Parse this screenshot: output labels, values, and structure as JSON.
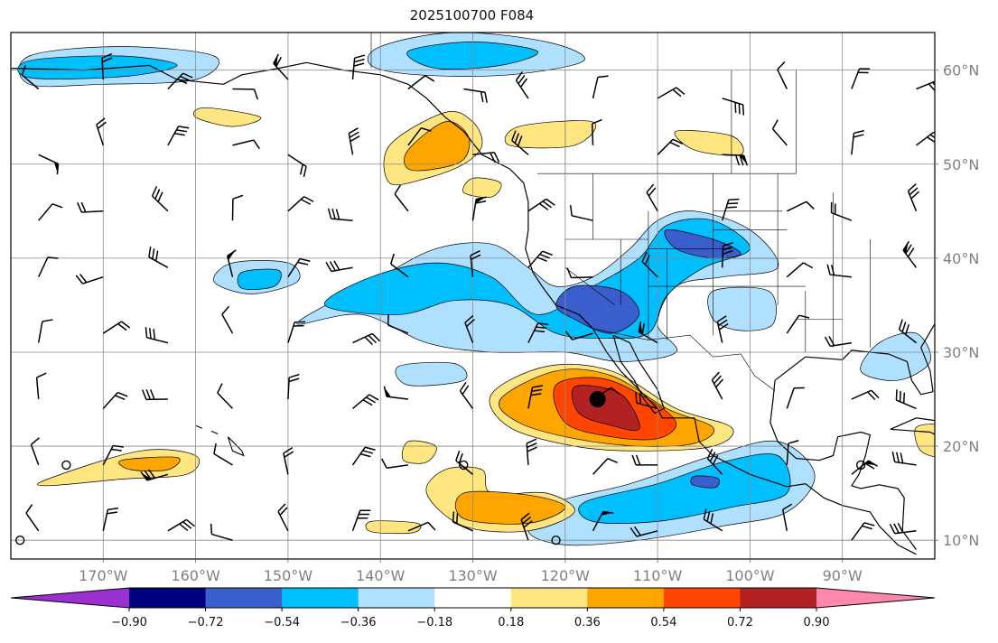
{
  "title": "2025100700 F084",
  "x_axis": {
    "ticks": [
      {
        "lon": -170,
        "label": "170°W"
      },
      {
        "lon": -160,
        "label": "160°W"
      },
      {
        "lon": -150,
        "label": "150°W"
      },
      {
        "lon": -140,
        "label": "140°W"
      },
      {
        "lon": -130,
        "label": "130°W"
      },
      {
        "lon": -120,
        "label": "120°W"
      },
      {
        "lon": -110,
        "label": "110°W"
      },
      {
        "lon": -100,
        "label": "100°W"
      },
      {
        "lon": -90,
        "label": "90°W"
      }
    ],
    "range": [
      -180,
      -80
    ]
  },
  "y_axis": {
    "ticks": [
      {
        "lat": 60,
        "label": "60°N"
      },
      {
        "lat": 50,
        "label": "50°N"
      },
      {
        "lat": 40,
        "label": "40°N"
      },
      {
        "lat": 30,
        "label": "30°N"
      },
      {
        "lat": 20,
        "label": "20°N"
      },
      {
        "lat": 10,
        "label": "10°N"
      }
    ],
    "range": [
      8,
      64
    ]
  },
  "grid": true,
  "colorbar": {
    "labels": [
      "−0.90",
      "−0.72",
      "−0.54",
      "−0.36",
      "−0.18",
      "0.18",
      "0.36",
      "0.54",
      "0.72",
      "0.90"
    ],
    "colors": [
      "#9b30d0",
      "#000080",
      "#3a5fcd",
      "#00bfff",
      "#b0e0ff",
      "#ffffff",
      "#ffe680",
      "#ffa500",
      "#ff4500",
      "#b22222",
      "#ff88aa"
    ],
    "extend": "both"
  },
  "contour_regions": [
    {
      "level": "-0.36",
      "color": "#b0e0ff",
      "pts": [
        [
          -140,
          38
        ],
        [
          -134,
          41
        ],
        [
          -128,
          41.5
        ],
        [
          -124,
          39
        ],
        [
          -121,
          37
        ],
        [
          -117,
          38
        ],
        [
          -113,
          41
        ],
        [
          -110,
          44
        ],
        [
          -106,
          45
        ],
        [
          -100,
          43
        ],
        [
          -97,
          39
        ],
        [
          -103,
          38
        ],
        [
          -108,
          37
        ],
        [
          -110,
          33
        ],
        [
          -108,
          30
        ],
        [
          -114,
          29
        ],
        [
          -120,
          30
        ],
        [
          -128,
          30
        ],
        [
          -135,
          31
        ],
        [
          -142,
          34
        ],
        [
          -149,
          33
        ],
        [
          -144,
          36
        ]
      ]
    },
    {
      "level": "-0.54",
      "color": "#00bfff",
      "pts": [
        [
          -141,
          38
        ],
        [
          -134,
          39.5
        ],
        [
          -128,
          38
        ],
        [
          -123,
          34
        ],
        [
          -117,
          37
        ],
        [
          -112,
          40
        ],
        [
          -109,
          43.5
        ],
        [
          -104,
          44
        ],
        [
          -100,
          41
        ],
        [
          -105,
          39
        ],
        [
          -109,
          36
        ],
        [
          -111,
          32
        ],
        [
          -116,
          31.5
        ],
        [
          -121,
          32
        ],
        [
          -126,
          35
        ],
        [
          -132,
          35.5
        ],
        [
          -138,
          34
        ],
        [
          -146,
          35
        ]
      ]
    },
    {
      "level": "-0.72",
      "color": "#3a5fcd",
      "pts": [
        [
          -119,
          37
        ],
        [
          -114,
          36.5
        ],
        [
          -112,
          34
        ],
        [
          -115,
          32
        ],
        [
          -119,
          33.5
        ],
        [
          -121,
          35
        ]
      ]
    },
    {
      "level": "-0.72",
      "color": "#3a5fcd",
      "pts": [
        [
          -109,
          43
        ],
        [
          -104,
          42
        ],
        [
          -101,
          40.5
        ],
        [
          -104,
          40
        ],
        [
          -108,
          41
        ]
      ]
    },
    {
      "level": "-0.36",
      "color": "#b0e0ff",
      "pts": [
        [
          -178,
          61.5
        ],
        [
          -168,
          62.5
        ],
        [
          -158,
          61.5
        ],
        [
          -160,
          59
        ],
        [
          -170,
          58.5
        ],
        [
          -178,
          58.5
        ]
      ]
    },
    {
      "level": "-0.54",
      "color": "#00bfff",
      "pts": [
        [
          -178,
          61
        ],
        [
          -168,
          61.5
        ],
        [
          -162,
          60.5
        ],
        [
          -168,
          59.3
        ],
        [
          -178,
          59.2
        ]
      ]
    },
    {
      "level": "-0.36",
      "color": "#b0e0ff",
      "pts": [
        [
          -140,
          62.5
        ],
        [
          -132,
          64
        ],
        [
          -122,
          63
        ],
        [
          -118,
          61
        ],
        [
          -126,
          59.5
        ],
        [
          -136,
          59.5
        ],
        [
          -141,
          60.5
        ]
      ]
    },
    {
      "level": "-0.54",
      "color": "#00bfff",
      "pts": [
        [
          -137,
          62
        ],
        [
          -130,
          63
        ],
        [
          -123,
          62
        ],
        [
          -127,
          60.5
        ],
        [
          -134,
          60.2
        ]
      ]
    },
    {
      "level": "-0.36",
      "color": "#b0e0ff",
      "pts": [
        [
          -156,
          39.5
        ],
        [
          -150,
          39.5
        ],
        [
          -149,
          37.5
        ],
        [
          -154,
          36.2
        ],
        [
          -158,
          37.5
        ]
      ]
    },
    {
      "level": "-0.54",
      "color": "#00bfff",
      "pts": [
        [
          -155,
          38.5
        ],
        [
          -151,
          38.7
        ],
        [
          -151.5,
          37
        ],
        [
          -155,
          36.8
        ]
      ]
    },
    {
      "level": "-0.36",
      "color": "#b0e0ff",
      "pts": [
        [
          -121,
          14
        ],
        [
          -113,
          16
        ],
        [
          -104,
          19
        ],
        [
          -97,
          20.5
        ],
        [
          -93,
          17
        ],
        [
          -96,
          13
        ],
        [
          -103,
          11.5
        ],
        [
          -112,
          10
        ],
        [
          -120,
          9.5
        ],
        [
          -124,
          11
        ]
      ]
    },
    {
      "level": "-0.54",
      "color": "#00bfff",
      "pts": [
        [
          -118,
          14
        ],
        [
          -110,
          16
        ],
        [
          -103,
          18.3
        ],
        [
          -97,
          19
        ],
        [
          -96,
          15
        ],
        [
          -102,
          13.5
        ],
        [
          -110,
          12
        ],
        [
          -117,
          12
        ]
      ]
    },
    {
      "level": "-0.72",
      "color": "#3a5fcd",
      "pts": [
        [
          -106,
          16.8
        ],
        [
          -103.5,
          16.6
        ],
        [
          -103.8,
          15.6
        ],
        [
          -106.2,
          15.9
        ]
      ]
    },
    {
      "level": "-0.36",
      "color": "#b0e0ff",
      "pts": [
        [
          -86,
          31
        ],
        [
          -82,
          32
        ],
        [
          -80.5,
          29
        ],
        [
          -84,
          27
        ],
        [
          -88,
          28
        ]
      ]
    },
    {
      "level": "-0.36",
      "color": "#b0e0ff",
      "pts": [
        [
          -104,
          36.5
        ],
        [
          -98,
          36.5
        ],
        [
          -97.5,
          33
        ],
        [
          -101,
          32.3
        ],
        [
          -104,
          33.5
        ]
      ]
    },
    {
      "level": "-0.36",
      "color": "#b0e0ff",
      "pts": [
        [
          -138,
          28.5
        ],
        [
          -132,
          28.8
        ],
        [
          -131,
          27
        ],
        [
          -137,
          26.5
        ]
      ]
    },
    {
      "level": "0.18",
      "color": "#ffe680",
      "pts": [
        [
          -139,
          52
        ],
        [
          -133,
          55.5
        ],
        [
          -130,
          54.5
        ],
        [
          -129,
          52
        ],
        [
          -131,
          50
        ],
        [
          -135,
          48.5
        ],
        [
          -139,
          48
        ]
      ]
    },
    {
      "level": "0.36",
      "color": "#ffa500",
      "pts": [
        [
          -137,
          51.5
        ],
        [
          -133,
          54.5
        ],
        [
          -130.5,
          53
        ],
        [
          -131,
          50.5
        ],
        [
          -134,
          49.5
        ],
        [
          -137,
          49.5
        ]
      ]
    },
    {
      "level": "0.18",
      "color": "#ffe680",
      "pts": [
        [
          -159,
          56
        ],
        [
          -153,
          55
        ],
        [
          -156,
          54
        ],
        [
          -160,
          55
        ]
      ]
    },
    {
      "level": "0.18",
      "color": "#ffe680",
      "pts": [
        [
          -125,
          54
        ],
        [
          -117,
          54.5
        ],
        [
          -119,
          52
        ],
        [
          -126,
          52
        ]
      ]
    },
    {
      "level": "0.18",
      "color": "#ffe680",
      "pts": [
        [
          -108,
          53.5
        ],
        [
          -102,
          53
        ],
        [
          -101,
          51
        ],
        [
          -106,
          51.5
        ]
      ]
    },
    {
      "level": "0.18",
      "color": "#ffe680",
      "pts": [
        [
          -130,
          48.5
        ],
        [
          -127,
          48
        ],
        [
          -128,
          46.5
        ],
        [
          -131,
          47
        ]
      ]
    },
    {
      "level": "0.18",
      "color": "#ffe680",
      "pts": [
        [
          -128,
          25.5
        ],
        [
          -122,
          28.5
        ],
        [
          -115,
          28
        ],
        [
          -108,
          24
        ],
        [
          -102,
          22
        ],
        [
          -104,
          20
        ],
        [
          -112,
          19.5
        ],
        [
          -119,
          20
        ],
        [
          -126,
          22
        ]
      ]
    },
    {
      "level": "0.36",
      "color": "#ffa500",
      "pts": [
        [
          -127,
          25
        ],
        [
          -121,
          28
        ],
        [
          -115,
          27.5
        ],
        [
          -109,
          24
        ],
        [
          -104,
          22
        ],
        [
          -106,
          20.3
        ],
        [
          -112,
          20
        ],
        [
          -119,
          20.8
        ],
        [
          -125,
          22.5
        ]
      ]
    },
    {
      "level": "0.54",
      "color": "#ff4500",
      "pts": [
        [
          -121,
          26.5
        ],
        [
          -116,
          27.2
        ],
        [
          -111,
          25
        ],
        [
          -108,
          22.5
        ],
        [
          -110,
          20.8
        ],
        [
          -115,
          21
        ],
        [
          -120,
          22.5
        ]
      ]
    },
    {
      "level": "0.72",
      "color": "#b22222",
      "pts": [
        [
          -119,
          26.3
        ],
        [
          -115,
          26
        ],
        [
          -113,
          24.5
        ],
        [
          -112,
          21.8
        ],
        [
          -115,
          22.2
        ],
        [
          -118.5,
          23.5
        ]
      ]
    },
    {
      "level": "0.18",
      "color": "#ffe680",
      "pts": [
        [
          -176,
          16.5
        ],
        [
          -166,
          19.5
        ],
        [
          -160,
          19
        ],
        [
          -161,
          17
        ],
        [
          -168,
          16.5
        ],
        [
          -176,
          15.8
        ]
      ]
    },
    {
      "level": "0.36",
      "color": "#ffa500",
      "pts": [
        [
          -168,
          18.5
        ],
        [
          -162,
          18.8
        ],
        [
          -163,
          17.5
        ],
        [
          -167,
          17.5
        ]
      ]
    },
    {
      "level": "0.18",
      "color": "#ffe680",
      "pts": [
        [
          -133,
          17.5
        ],
        [
          -129,
          17.5
        ],
        [
          -128,
          15
        ],
        [
          -122,
          15
        ],
        [
          -119,
          13
        ],
        [
          -124,
          11
        ],
        [
          -131,
          11.5
        ],
        [
          -135,
          15
        ]
      ]
    },
    {
      "level": "0.36",
      "color": "#ffa500",
      "pts": [
        [
          -131,
          15
        ],
        [
          -124,
          14.8
        ],
        [
          -120,
          13.5
        ],
        [
          -124,
          11.8
        ],
        [
          -131,
          12.3
        ]
      ]
    },
    {
      "level": "0.18",
      "color": "#ffe680",
      "pts": [
        [
          -141,
          12
        ],
        [
          -136,
          11.8
        ],
        [
          -136.5,
          10.8
        ],
        [
          -141,
          10.9
        ]
      ]
    },
    {
      "level": "0.18",
      "color": "#ffe680",
      "pts": [
        [
          -137,
          20.5
        ],
        [
          -134,
          20
        ],
        [
          -135,
          18.3
        ],
        [
          -137.5,
          18.5
        ]
      ]
    },
    {
      "level": "0.18",
      "color": "#ffe680",
      "pts": [
        [
          -82,
          22
        ],
        [
          -79,
          22
        ],
        [
          -79,
          19
        ],
        [
          -81.5,
          19.5
        ]
      ]
    }
  ],
  "barbs": [
    [
      -177,
      58
    ],
    [
      -170,
      59
    ],
    [
      -163,
      58
    ],
    [
      -156,
      58
    ],
    [
      -150,
      59
    ],
    [
      -143,
      59
    ],
    [
      -137,
      58
    ],
    [
      -131,
      58
    ],
    [
      -124,
      57
    ],
    [
      -117,
      57
    ],
    [
      -110,
      57
    ],
    [
      -103,
      57
    ],
    [
      -96,
      58
    ],
    [
      -89,
      58
    ],
    [
      -82,
      58
    ],
    [
      -177,
      51
    ],
    [
      -170,
      52
    ],
    [
      -163,
      52
    ],
    [
      -156,
      52
    ],
    [
      -150,
      51
    ],
    [
      -143,
      51
    ],
    [
      -137,
      52
    ],
    [
      -130,
      51
    ],
    [
      -124,
      51
    ],
    [
      -117,
      52
    ],
    [
      -110,
      51
    ],
    [
      -103,
      51
    ],
    [
      -96,
      52
    ],
    [
      -89,
      51
    ],
    [
      -82,
      52
    ],
    [
      -177,
      44
    ],
    [
      -170,
      45
    ],
    [
      -163,
      45
    ],
    [
      -156,
      44
    ],
    [
      -150,
      45
    ],
    [
      -143,
      44
    ],
    [
      -137,
      45
    ],
    [
      -130,
      44
    ],
    [
      -124,
      45
    ],
    [
      -117,
      44
    ],
    [
      -110,
      45
    ],
    [
      -103,
      44
    ],
    [
      -96,
      45
    ],
    [
      -89,
      44
    ],
    [
      -82,
      45
    ],
    [
      -177,
      38
    ],
    [
      -170,
      38
    ],
    [
      -163,
      39
    ],
    [
      -156,
      38
    ],
    [
      -150,
      38
    ],
    [
      -143,
      39
    ],
    [
      -137,
      38
    ],
    [
      -130,
      38
    ],
    [
      -124,
      39
    ],
    [
      -117,
      38
    ],
    [
      -110,
      38
    ],
    [
      -103,
      39
    ],
    [
      -96,
      38
    ],
    [
      -89,
      38
    ],
    [
      -82,
      39
    ],
    [
      -177,
      31
    ],
    [
      -170,
      32
    ],
    [
      -163,
      31
    ],
    [
      -156,
      32
    ],
    [
      -150,
      31
    ],
    [
      -143,
      31
    ],
    [
      -137,
      32
    ],
    [
      -130,
      31
    ],
    [
      -124,
      31
    ],
    [
      -117,
      32
    ],
    [
      -110,
      31
    ],
    [
      -103,
      31
    ],
    [
      -96,
      32
    ],
    [
      -89,
      31
    ],
    [
      -82,
      31
    ],
    [
      -177,
      25
    ],
    [
      -170,
      24
    ],
    [
      -163,
      25
    ],
    [
      -156,
      24
    ],
    [
      -150,
      25
    ],
    [
      -143,
      24
    ],
    [
      -137,
      25
    ],
    [
      -130,
      24
    ],
    [
      -124,
      24
    ],
    [
      -117,
      25
    ],
    [
      -110,
      24
    ],
    [
      -103,
      25
    ],
    [
      -96,
      24
    ],
    [
      -89,
      25
    ],
    [
      -82,
      24
    ],
    [
      -177,
      18
    ],
    [
      -170,
      18
    ],
    [
      -163,
      17
    ],
    [
      -156,
      18
    ],
    [
      -150,
      17
    ],
    [
      -143,
      18
    ],
    [
      -137,
      18
    ],
    [
      -130,
      17
    ],
    [
      -124,
      18
    ],
    [
      -117,
      17
    ],
    [
      -110,
      18
    ],
    [
      -103,
      17
    ],
    [
      -96,
      18
    ],
    [
      -89,
      17
    ],
    [
      -82,
      18
    ],
    [
      -177,
      11
    ],
    [
      -170,
      11
    ],
    [
      -163,
      11
    ],
    [
      -156,
      10
    ],
    [
      -150,
      11
    ],
    [
      -143,
      11
    ],
    [
      -137,
      11
    ],
    [
      -130,
      11
    ],
    [
      -124,
      10
    ],
    [
      -117,
      11
    ],
    [
      -110,
      11
    ],
    [
      -103,
      11
    ],
    [
      -96,
      11
    ],
    [
      -89,
      10
    ],
    [
      -82,
      11
    ]
  ],
  "circles": [
    [
      -174,
      18
    ],
    [
      -131,
      18
    ],
    [
      -121,
      10
    ],
    [
      -88,
      18
    ],
    [
      -179,
      10
    ]
  ],
  "storm_center": [
    -116.5,
    25
  ]
}
